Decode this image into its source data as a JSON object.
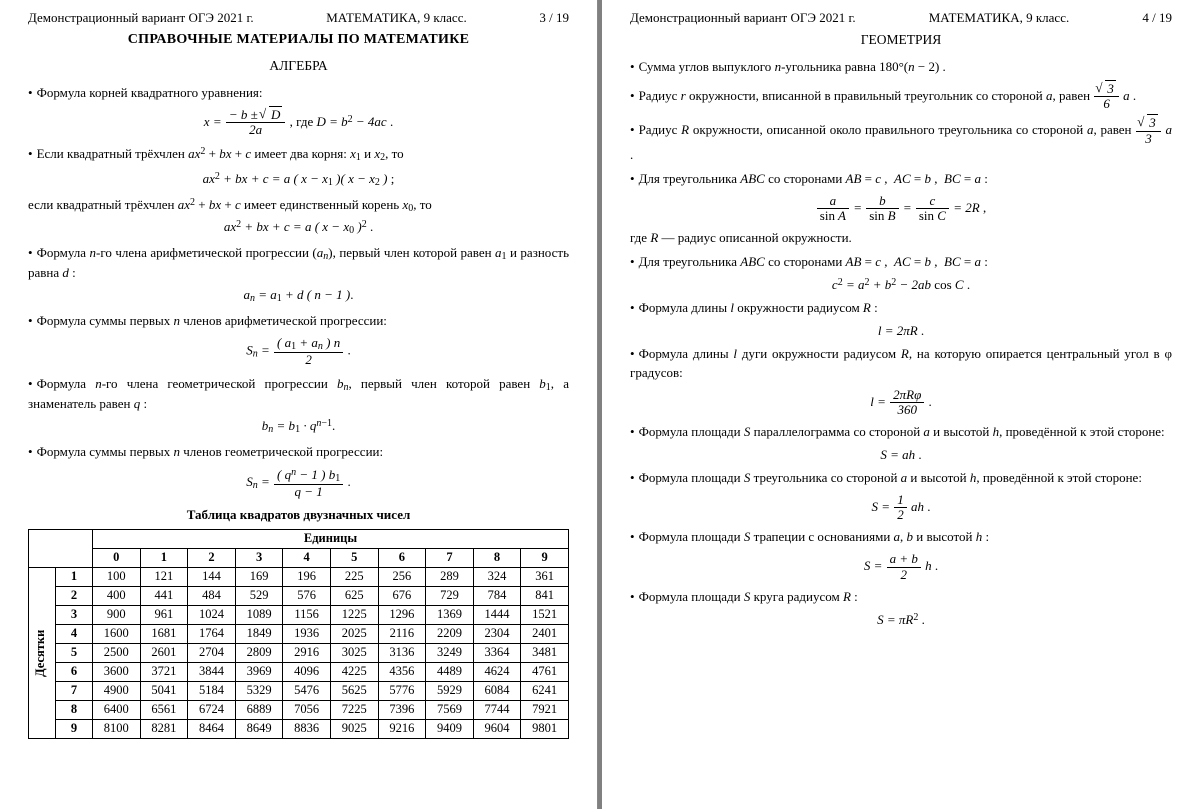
{
  "header": {
    "source": "Демонстрационный вариант ОГЭ 2021 г.",
    "subject": "МАТЕМАТИКА, 9 класс.",
    "page_left": "3 / 19",
    "page_right": "4 / 19"
  },
  "left": {
    "main_title": "СПРАВОЧНЫЕ МАТЕРИАЛЫ ПО МАТЕМАТИКЕ",
    "sub_title": "АЛГЕБРА",
    "b1": "Формула корней квадратного уравнения:",
    "b2a": "Если квадратный трёхчлен ",
    "b2b": " имеет два корня: ",
    "b2c": " и ",
    "b2d": ", то",
    "b2e": "если квадратный трёхчлен ",
    "b2f": " имеет единственный корень ",
    "b2g": ", то",
    "b3a": "Формула ",
    "b3b": "-го члена арифметической прогрессии ",
    "b3c": ", первый член которой равен ",
    "b3d": " и разность равна ",
    "b4a": "Формула суммы первых ",
    "b4b": " членов арифметической прогрессии:",
    "b5a": "Формула ",
    "b5b": "-го члена геометрической прогрессии ",
    "b5c": ", первый член которой равен ",
    "b5d": ", а знаменатель равен ",
    "b6a": "Формула суммы первых ",
    "b6b": " членов геометрической прогрессии:",
    "table_title": "Таблица квадратов двузначных чисел",
    "units_label": "Единицы",
    "tens_label": "Десятки"
  },
  "right": {
    "sub_title": "ГЕОМЕТРИЯ",
    "g1a": "Сумма углов выпуклого ",
    "g1b": "-угольника равна ",
    "g2a": "Радиус ",
    "g2b": " окружности, вписанной в правильный треугольник со стороной ",
    "g2c": ", равен ",
    "g3a": "Радиус ",
    "g3b": " окружности, описанной около правильного треугольника со стороной ",
    "g3c": ", равен ",
    "g4a": "Для треугольника ",
    "g4b": " со сторонами ",
    "g4c": "где ",
    "g4d": " — радиус описанной окружности.",
    "g5a": "Для треугольника ",
    "g5b": " со сторонами ",
    "g6a": "Формула длины ",
    "g6b": " окружности радиусом ",
    "g7a": "Формула длины ",
    "g7b": " дуги окружности радиусом ",
    "g7c": ", на которую опирается центральный угол в ",
    "g7d": " градусов:",
    "g8a": "Формула площади ",
    "g8b": " параллелограмма со стороной ",
    "g8c": " и высотой ",
    "g8d": ", проведённой к этой стороне:",
    "g9a": "Формула площади ",
    "g9b": " треугольника со стороной ",
    "g9c": " и высотой ",
    "g9d": ", проведённой к этой стороне:",
    "g10a": "Формула площади ",
    "g10b": " трапеции с основаниями ",
    "g10c": " и высотой ",
    "g11a": "Формула площади ",
    "g11b": " круга радиусом "
  },
  "table": {
    "col_headers": [
      "0",
      "1",
      "2",
      "3",
      "4",
      "5",
      "6",
      "7",
      "8",
      "9"
    ],
    "row_headers": [
      "1",
      "2",
      "3",
      "4",
      "5",
      "6",
      "7",
      "8",
      "9"
    ],
    "rows": [
      [
        100,
        121,
        144,
        169,
        196,
        225,
        256,
        289,
        324,
        361
      ],
      [
        400,
        441,
        484,
        529,
        576,
        625,
        676,
        729,
        784,
        841
      ],
      [
        900,
        961,
        1024,
        1089,
        1156,
        1225,
        1296,
        1369,
        1444,
        1521
      ],
      [
        1600,
        1681,
        1764,
        1849,
        1936,
        2025,
        2116,
        2209,
        2304,
        2401
      ],
      [
        2500,
        2601,
        2704,
        2809,
        2916,
        3025,
        3136,
        3249,
        3364,
        3481
      ],
      [
        3600,
        3721,
        3844,
        3969,
        4096,
        4225,
        4356,
        4489,
        4624,
        4761
      ],
      [
        4900,
        5041,
        5184,
        5329,
        5476,
        5625,
        5776,
        5929,
        6084,
        6241
      ],
      [
        6400,
        6561,
        6724,
        6889,
        7056,
        7225,
        7396,
        7569,
        7744,
        7921
      ],
      [
        8100,
        8281,
        8464,
        8649,
        8836,
        9025,
        9216,
        9409,
        9604,
        9801
      ]
    ]
  }
}
